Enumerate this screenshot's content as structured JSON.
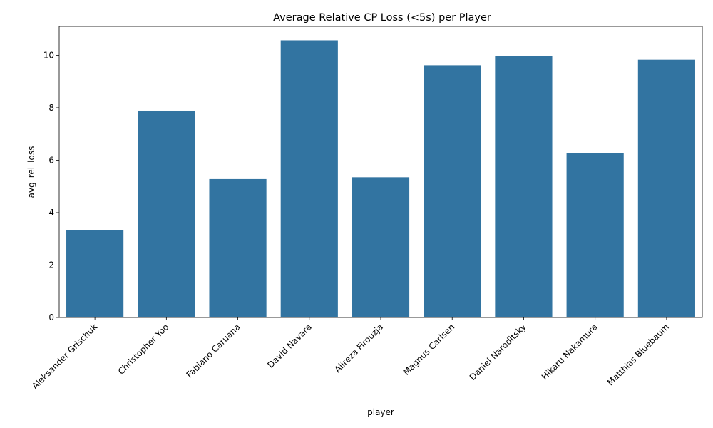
{
  "chart_data": {
    "type": "bar",
    "title": "Average Relative CP Loss (<5s) per Player",
    "xlabel": "player",
    "ylabel": "avg_rel_loss",
    "categories": [
      "Aleksander Grischuk",
      "Christopher Yoo",
      "Fabiano Caruana",
      "David Navara",
      "Alireza Firouzja",
      "Magnus Carlsen",
      "Daniel Naroditsky",
      "Hikaru Nakamura",
      "Matthias Bluebaum"
    ],
    "values": [
      3.32,
      7.89,
      5.28,
      10.57,
      5.35,
      9.62,
      9.97,
      6.26,
      9.83
    ],
    "ylim": [
      0,
      11.1
    ],
    "yticks": [
      0,
      2,
      4,
      6,
      8,
      10
    ],
    "bar_color": "#3274a1",
    "grid": false,
    "legend": "none"
  }
}
